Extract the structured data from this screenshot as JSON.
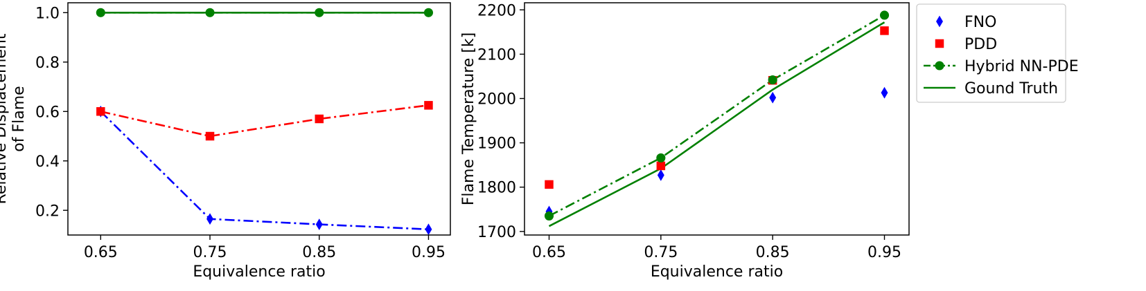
{
  "chart_data": [
    {
      "type": "line",
      "title": "",
      "xlabel": "Equivalence ratio",
      "ylabel": "Relative Displacement\nof Flame",
      "x": [
        0.65,
        0.75,
        0.85,
        0.95
      ],
      "xticks": [
        "0.65",
        "0.75",
        "0.85",
        "0.95"
      ],
      "xlim": [
        0.62,
        0.97
      ],
      "ylim": [
        0.1,
        1.04
      ],
      "yticks": [
        "0.2",
        "0.4",
        "0.6",
        "0.8",
        "1.0"
      ],
      "ytick_values": [
        0.2,
        0.4,
        0.6,
        0.8,
        1.0
      ],
      "grid": false,
      "series": [
        {
          "name": "FNO",
          "key": "fno",
          "color": "#0000ff",
          "marker": "diamond",
          "line": "dashdot",
          "values": [
            0.6,
            0.165,
            0.143,
            0.123
          ]
        },
        {
          "name": "PDD",
          "key": "pdd",
          "color": "#ff0000",
          "marker": "square",
          "line": "dashdot",
          "values": [
            0.6,
            0.5,
            0.57,
            0.625
          ]
        },
        {
          "name": "Hybrid NN-PDE",
          "key": "hybrid",
          "color": "#008000",
          "marker": "circle",
          "line": "dashdot",
          "values": [
            1.0,
            1.0,
            1.0,
            1.0
          ]
        },
        {
          "name": "Gound Truth",
          "key": "truth",
          "color": "#008000",
          "marker": "none",
          "line": "solid",
          "values": [
            1.0,
            1.0,
            1.0,
            1.0
          ]
        }
      ]
    },
    {
      "type": "line",
      "title": "",
      "xlabel": "Equivalence ratio",
      "ylabel": "Flame Temperature [k]",
      "x": [
        0.65,
        0.75,
        0.85,
        0.95
      ],
      "xticks": [
        "0.65",
        "0.75",
        "0.85",
        "0.95"
      ],
      "xlim": [
        0.628,
        0.972
      ],
      "ylim": [
        1692,
        2216
      ],
      "yticks": [
        "1700",
        "1800",
        "1900",
        "2000",
        "2100",
        "2200"
      ],
      "ytick_values": [
        1700,
        1800,
        1900,
        2000,
        2100,
        2200
      ],
      "grid": false,
      "legend_position": "outside-right",
      "series": [
        {
          "name": "FNO",
          "key": "fno",
          "color": "#0000ff",
          "marker": "diamond",
          "line": "none",
          "values": [
            1745,
            1827,
            2002,
            2013
          ]
        },
        {
          "name": "PDD",
          "key": "pdd",
          "color": "#ff0000",
          "marker": "square",
          "line": "none",
          "values": [
            1806,
            1848,
            2041,
            2153
          ]
        },
        {
          "name": "Hybrid NN-PDE",
          "key": "hybrid",
          "color": "#008000",
          "marker": "circle",
          "line": "dashdot",
          "values": [
            1735,
            1866,
            2042,
            2188
          ]
        },
        {
          "name": "Gound Truth",
          "key": "truth",
          "color": "#008000",
          "marker": "none",
          "line": "solid",
          "values": [
            1712,
            1842,
            2020,
            2172
          ]
        }
      ]
    }
  ],
  "legend": {
    "items": [
      {
        "key": "fno",
        "label": "FNO"
      },
      {
        "key": "pdd",
        "label": "PDD"
      },
      {
        "key": "hybrid",
        "label": "Hybrid NN-PDE"
      },
      {
        "key": "truth",
        "label": "Gound Truth"
      }
    ]
  }
}
